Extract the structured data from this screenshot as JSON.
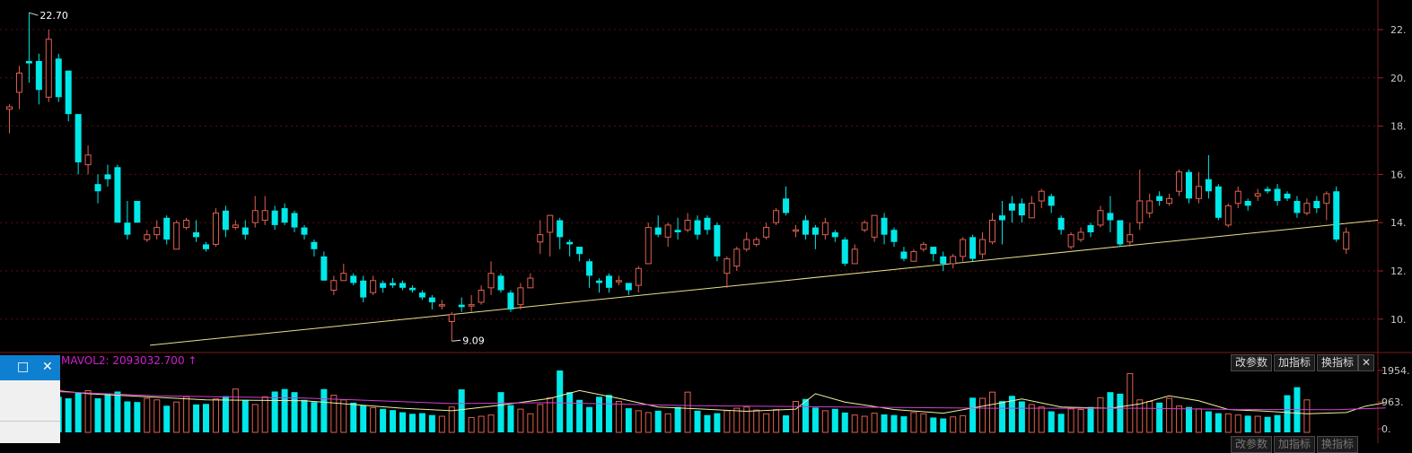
{
  "chart_data": {
    "type": "candlestick",
    "price_axis": {
      "range": [
        9.0,
        23.1
      ],
      "ticks": [
        10,
        12,
        14,
        16,
        18,
        20,
        22
      ],
      "tick_labels": [
        "10.",
        "12.",
        "14.",
        "16.",
        "18.",
        "20.",
        "22."
      ]
    },
    "volume_axis": {
      "range": [
        0,
        2000
      ],
      "tick_labels": [
        "1954.",
        "963.",
        "0."
      ]
    },
    "annotations": {
      "high_label": "22.70",
      "low_label": "9.09"
    },
    "trendline": {
      "from": {
        "bar": 0,
        "price": 8.9
      },
      "to": {
        "bar": 124,
        "price": 14.1
      }
    },
    "volume_indicator": {
      "label": "MAVOL2: 2093032.700",
      "arrow": "↑"
    },
    "candles": [
      [
        18.7,
        18.8,
        17.7,
        18.9
      ],
      [
        19.4,
        20.2,
        18.7,
        20.5
      ],
      [
        20.7,
        20.6,
        19.8,
        22.7
      ],
      [
        20.7,
        19.5,
        18.9,
        21.0
      ],
      [
        19.2,
        21.6,
        19.0,
        22.0
      ],
      [
        20.8,
        19.2,
        19.0,
        21.0
      ],
      [
        20.3,
        18.5,
        18.2,
        20.3
      ],
      [
        18.5,
        16.5,
        16.0,
        18.5
      ],
      [
        16.4,
        16.8,
        16.0,
        17.2
      ],
      [
        15.6,
        15.3,
        14.8,
        16.0
      ],
      [
        16.0,
        15.8,
        15.5,
        16.4
      ],
      [
        16.3,
        14.0,
        14.0,
        16.4
      ],
      [
        14.0,
        13.5,
        13.3,
        14.9
      ],
      [
        14.9,
        14.0,
        14.0,
        14.9
      ],
      [
        13.3,
        13.5,
        13.2,
        13.7
      ],
      [
        13.5,
        13.8,
        13.3,
        14.1
      ],
      [
        14.2,
        13.3,
        13.1,
        14.3
      ],
      [
        12.9,
        14.0,
        12.9,
        14.1
      ],
      [
        13.8,
        14.1,
        13.7,
        14.2
      ],
      [
        13.6,
        13.4,
        13.2,
        14.1
      ],
      [
        13.1,
        12.9,
        12.8,
        13.2
      ],
      [
        13.1,
        14.4,
        13.0,
        14.6
      ],
      [
        14.5,
        13.7,
        13.4,
        14.7
      ],
      [
        13.8,
        13.9,
        13.7,
        14.1
      ],
      [
        13.8,
        13.5,
        13.3,
        14.1
      ],
      [
        14.0,
        14.5,
        13.8,
        15.1
      ],
      [
        14.1,
        14.5,
        13.9,
        15.1
      ],
      [
        14.5,
        13.9,
        13.7,
        14.7
      ],
      [
        14.6,
        14.0,
        13.9,
        14.8
      ],
      [
        14.4,
        13.8,
        13.6,
        14.5
      ],
      [
        13.8,
        13.5,
        13.3,
        13.9
      ],
      [
        13.2,
        12.9,
        12.6,
        13.3
      ],
      [
        12.6,
        11.6,
        11.6,
        12.8
      ],
      [
        11.2,
        11.6,
        11.0,
        11.8
      ],
      [
        11.6,
        11.9,
        11.6,
        12.3
      ],
      [
        11.8,
        11.5,
        11.4,
        11.9
      ],
      [
        11.6,
        10.9,
        10.7,
        11.8
      ],
      [
        11.1,
        11.6,
        11.0,
        11.8
      ],
      [
        11.5,
        11.3,
        11.1,
        11.6
      ],
      [
        11.5,
        11.4,
        11.3,
        11.7
      ],
      [
        11.5,
        11.3,
        11.2,
        11.6
      ],
      [
        11.3,
        11.2,
        11.1,
        11.4
      ],
      [
        11.1,
        10.9,
        10.8,
        11.2
      ],
      [
        10.9,
        10.7,
        10.4,
        11.0
      ],
      [
        10.6,
        10.6,
        10.4,
        10.8
      ],
      [
        9.9,
        10.2,
        9.1,
        10.3
      ],
      [
        10.6,
        10.5,
        10.3,
        10.9
      ],
      [
        10.6,
        10.6,
        10.3,
        11.0
      ],
      [
        10.7,
        11.2,
        10.6,
        11.4
      ],
      [
        11.3,
        11.9,
        11.0,
        12.4
      ],
      [
        11.8,
        11.2,
        11.1,
        11.9
      ],
      [
        11.1,
        10.4,
        10.3,
        11.2
      ],
      [
        10.6,
        11.3,
        10.4,
        11.5
      ],
      [
        11.3,
        11.7,
        11.3,
        11.9
      ],
      [
        13.2,
        13.5,
        12.7,
        14.1
      ],
      [
        13.6,
        14.3,
        12.6,
        14.3
      ],
      [
        14.1,
        13.4,
        12.9,
        14.2
      ],
      [
        13.2,
        13.1,
        12.6,
        13.3
      ],
      [
        13.0,
        12.7,
        12.4,
        13.0
      ],
      [
        12.4,
        11.8,
        11.3,
        12.5
      ],
      [
        11.6,
        11.5,
        11.1,
        11.7
      ],
      [
        11.8,
        11.3,
        11.1,
        11.9
      ],
      [
        11.6,
        11.6,
        11.4,
        11.8
      ],
      [
        11.5,
        11.2,
        11.0,
        11.5
      ],
      [
        11.4,
        12.1,
        11.1,
        12.2
      ],
      [
        12.3,
        13.8,
        12.3,
        14.0
      ],
      [
        13.8,
        13.5,
        13.4,
        14.3
      ],
      [
        13.4,
        13.9,
        13.0,
        14.0
      ],
      [
        13.7,
        13.6,
        13.3,
        14.2
      ],
      [
        13.7,
        14.1,
        13.6,
        14.4
      ],
      [
        14.1,
        13.5,
        13.3,
        14.3
      ],
      [
        14.2,
        13.7,
        13.5,
        14.3
      ],
      [
        13.9,
        12.6,
        12.4,
        14.0
      ],
      [
        11.9,
        12.5,
        11.3,
        12.6
      ],
      [
        12.2,
        12.9,
        12.0,
        13.0
      ],
      [
        12.9,
        13.3,
        12.8,
        13.6
      ],
      [
        13.1,
        13.3,
        13.0,
        13.4
      ],
      [
        13.4,
        13.8,
        13.3,
        14.0
      ],
      [
        14.0,
        14.5,
        13.9,
        14.6
      ],
      [
        15.0,
        14.4,
        14.3,
        15.5
      ],
      [
        13.7,
        13.7,
        13.4,
        13.9
      ],
      [
        14.1,
        13.5,
        13.3,
        14.3
      ],
      [
        13.8,
        13.5,
        12.9,
        13.9
      ],
      [
        13.5,
        14.0,
        13.3,
        14.2
      ],
      [
        13.6,
        13.4,
        13.2,
        13.7
      ],
      [
        13.3,
        12.3,
        12.2,
        13.4
      ],
      [
        12.3,
        12.9,
        12.3,
        13.1
      ],
      [
        13.7,
        14.0,
        13.6,
        14.1
      ],
      [
        13.4,
        14.3,
        13.2,
        14.3
      ],
      [
        14.2,
        13.5,
        13.1,
        14.4
      ],
      [
        13.7,
        13.2,
        13.0,
        13.8
      ],
      [
        12.8,
        12.5,
        12.4,
        13.0
      ],
      [
        12.4,
        12.8,
        12.4,
        12.9
      ],
      [
        12.9,
        13.1,
        12.8,
        13.2
      ],
      [
        13.0,
        12.7,
        12.4,
        13.0
      ],
      [
        12.6,
        12.3,
        12.0,
        12.8
      ],
      [
        12.3,
        12.6,
        12.1,
        12.7
      ],
      [
        12.6,
        13.3,
        12.4,
        13.4
      ],
      [
        13.4,
        12.5,
        12.4,
        13.5
      ],
      [
        12.7,
        13.3,
        12.5,
        13.6
      ],
      [
        13.2,
        14.1,
        13.1,
        14.4
      ],
      [
        14.3,
        14.1,
        13.1,
        14.9
      ],
      [
        14.8,
        14.5,
        14.0,
        15.1
      ],
      [
        14.8,
        14.3,
        14.0,
        15.0
      ],
      [
        14.2,
        14.8,
        14.2,
        15.1
      ],
      [
        14.9,
        15.3,
        14.6,
        15.4
      ],
      [
        15.1,
        14.7,
        14.4,
        15.2
      ],
      [
        14.2,
        13.7,
        13.5,
        14.3
      ],
      [
        13.0,
        13.5,
        12.9,
        13.6
      ],
      [
        13.3,
        13.6,
        13.2,
        13.8
      ],
      [
        13.9,
        13.6,
        13.4,
        14.0
      ],
      [
        13.9,
        14.5,
        13.8,
        14.7
      ],
      [
        14.4,
        14.1,
        13.6,
        15.1
      ],
      [
        14.1,
        13.1,
        13.0,
        14.1
      ],
      [
        13.2,
        13.5,
        13.0,
        14.0
      ],
      [
        14.0,
        14.9,
        13.7,
        16.2
      ],
      [
        14.4,
        14.9,
        14.2,
        15.2
      ],
      [
        15.1,
        14.9,
        14.7,
        15.3
      ],
      [
        14.8,
        15.0,
        14.7,
        15.2
      ],
      [
        15.3,
        16.1,
        15.1,
        16.2
      ],
      [
        16.1,
        15.0,
        14.8,
        16.2
      ],
      [
        15.0,
        15.5,
        14.8,
        16.1
      ],
      [
        15.8,
        15.3,
        15.0,
        16.8
      ],
      [
        15.5,
        14.2,
        14.1,
        15.6
      ],
      [
        13.9,
        14.7,
        13.8,
        14.8
      ],
      [
        14.8,
        15.3,
        14.6,
        15.5
      ],
      [
        14.9,
        14.7,
        14.5,
        15.0
      ],
      [
        15.1,
        15.2,
        14.9,
        15.4
      ],
      [
        15.4,
        15.3,
        15.2,
        15.5
      ],
      [
        15.4,
        14.9,
        14.7,
        15.6
      ],
      [
        15.2,
        15.0,
        14.9,
        15.3
      ],
      [
        14.9,
        14.4,
        14.2,
        15.1
      ],
      [
        14.4,
        14.8,
        14.3,
        15.0
      ],
      [
        14.9,
        14.6,
        14.4,
        15.1
      ],
      [
        14.8,
        15.2,
        14.1,
        15.3
      ],
      [
        15.3,
        13.3,
        13.2,
        15.5
      ],
      [
        12.9,
        13.6,
        12.7,
        13.8
      ]
    ],
    "volume": [
      1450,
      1630,
      1300,
      1250,
      1420,
      1150,
      1100,
      1280,
      1350,
      1100,
      1260,
      1320,
      1000,
      980,
      1100,
      1050,
      860,
      980,
      1150,
      900,
      920,
      1080,
      1170,
      1400,
      1050,
      900,
      1150,
      1320,
      1400,
      1300,
      1050,
      980,
      1400,
      1200,
      1050,
      960,
      880,
      800,
      760,
      720,
      650,
      600,
      620,
      560,
      520,
      820,
      1390,
      480,
      520,
      560,
      1300,
      880,
      750,
      600,
      900,
      1120,
      2000,
      1300,
      1050,
      820,
      1150,
      1210,
      1000,
      780,
      700,
      640,
      700,
      600,
      820,
      1300,
      700,
      560,
      620,
      700,
      780,
      820,
      720,
      600,
      740,
      550,
      1000,
      1080,
      800,
      700,
      760,
      640,
      560,
      520,
      620,
      580,
      560,
      520,
      640,
      600,
      480,
      450,
      500,
      540,
      1120,
      1100,
      1300,
      1010,
      1180,
      1000,
      900,
      820,
      680,
      600,
      760,
      740,
      820,
      1120,
      1300,
      1250,
      1900,
      1050,
      1000,
      960,
      1100,
      850,
      820,
      760,
      680,
      620,
      600,
      560,
      540,
      520,
      500,
      560,
      1200,
      1460,
      1050
    ],
    "vol_ma": [
      [
        0,
        1500
      ],
      [
        8,
        1250
      ],
      [
        20,
        1050
      ],
      [
        30,
        1020
      ],
      [
        40,
        780
      ],
      [
        45,
        700
      ],
      [
        50,
        880
      ],
      [
        55,
        1100
      ],
      [
        58,
        1350
      ],
      [
        62,
        1100
      ],
      [
        66,
        820
      ],
      [
        70,
        760
      ],
      [
        75,
        680
      ],
      [
        80,
        750
      ],
      [
        82,
        1250
      ],
      [
        85,
        980
      ],
      [
        90,
        740
      ],
      [
        95,
        620
      ],
      [
        100,
        900
      ],
      [
        103,
        1080
      ],
      [
        107,
        820
      ],
      [
        112,
        780
      ],
      [
        115,
        920
      ],
      [
        118,
        1180
      ],
      [
        121,
        1020
      ],
      [
        124,
        740
      ],
      [
        128,
        680
      ],
      [
        132,
        600
      ],
      [
        136,
        640
      ],
      [
        138,
        850
      ],
      [
        140,
        960
      ]
    ],
    "vol_ma2": [
      [
        0,
        1380
      ],
      [
        15,
        1180
      ],
      [
        30,
        1110
      ],
      [
        45,
        930
      ],
      [
        55,
        960
      ],
      [
        70,
        860
      ],
      [
        85,
        820
      ],
      [
        100,
        780
      ],
      [
        115,
        780
      ],
      [
        125,
        740
      ],
      [
        135,
        730
      ],
      [
        140,
        790
      ]
    ]
  },
  "buttons": {
    "params": "改参数",
    "add": "加指标",
    "switch": "换指标",
    "close": "✕"
  },
  "side_window": {
    "restore_icon": "□",
    "close_icon": "✕"
  }
}
